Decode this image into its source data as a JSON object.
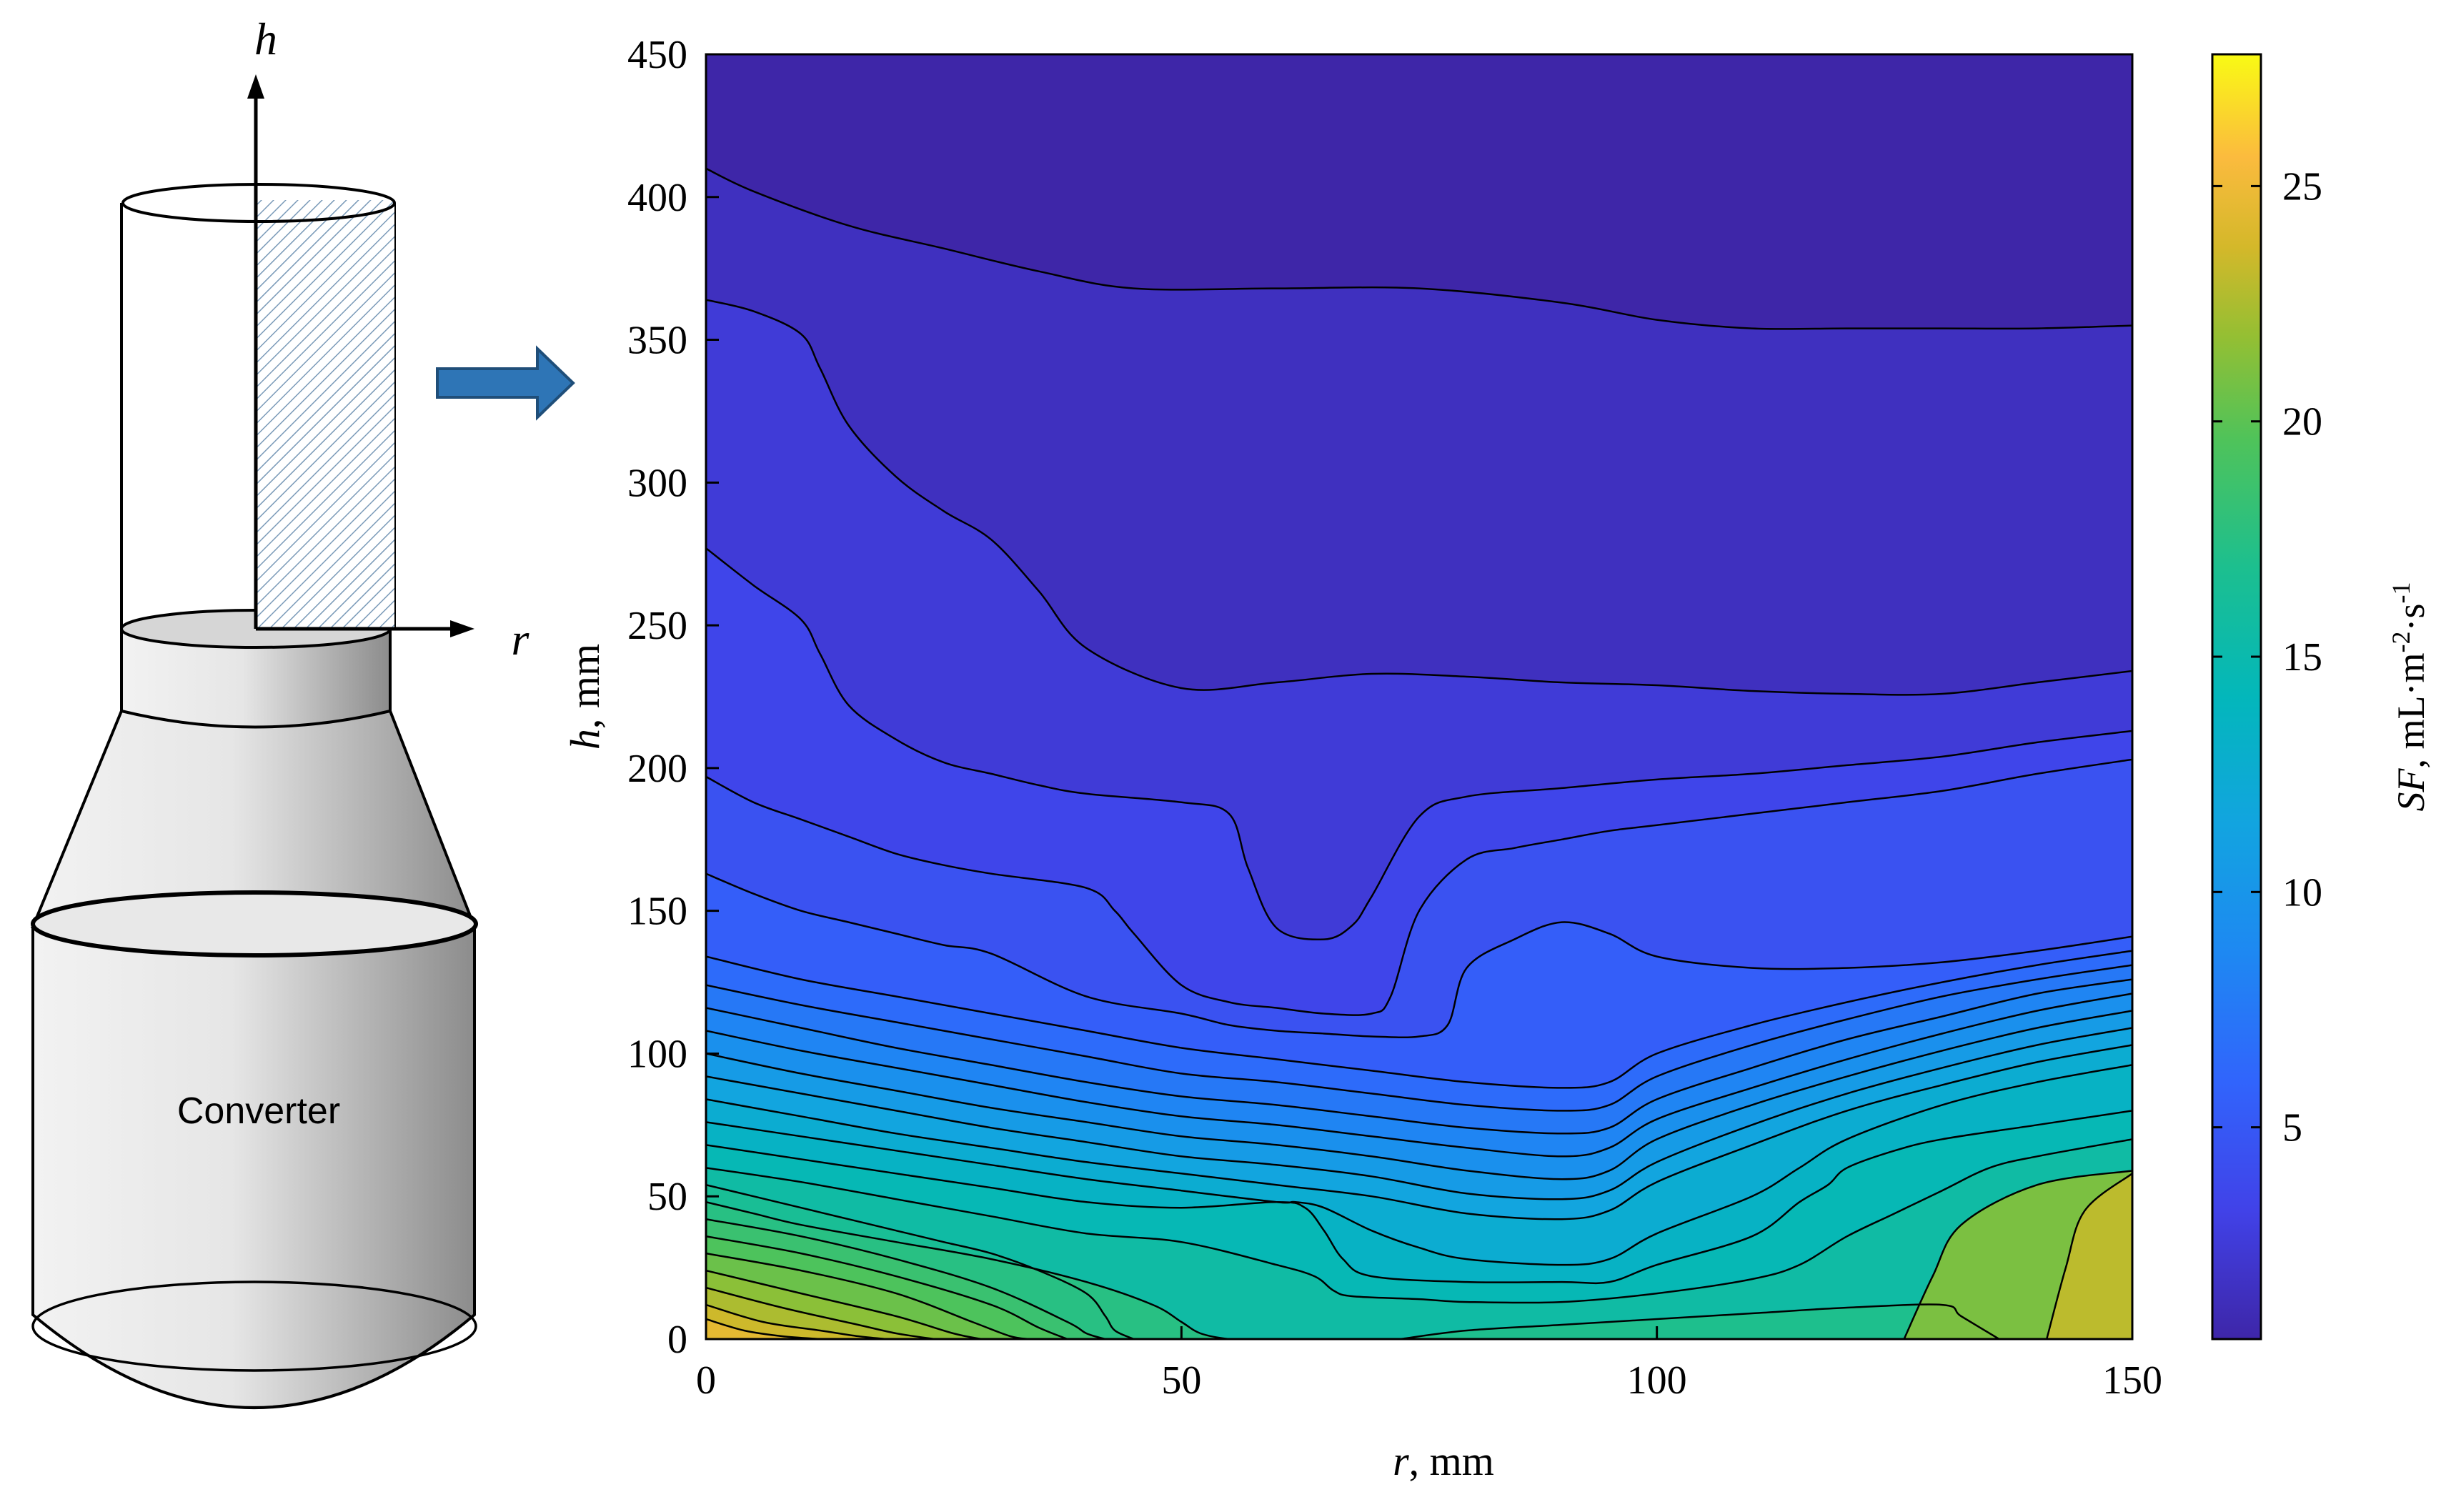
{
  "chart_data": {
    "type": "contour",
    "title": "",
    "xlabel": {
      "symbol": "r",
      "unit": ", mm"
    },
    "ylabel": {
      "symbol": "h",
      "unit": ", mm"
    },
    "xlim": [
      0,
      150
    ],
    "ylim": [
      0,
      450
    ],
    "xticks": [
      "0",
      "50",
      "100",
      "150"
    ],
    "yticks": [
      "0",
      "50",
      "100",
      "150",
      "200",
      "250",
      "300",
      "350",
      "400",
      "450"
    ],
    "colorbar": {
      "label": {
        "symbol": "SF",
        "unit": ", mL·m",
        "exp1": "-2",
        "mid": "·s",
        "exp2": "-1"
      },
      "range": [
        0.5,
        27.8
      ],
      "ticks": [
        "5",
        "10",
        "15",
        "20",
        "25"
      ],
      "colormap": "parula"
    },
    "contour_lines": [
      {
        "level": 1,
        "x": [
          0,
          5,
          15,
          25,
          35,
          45,
          60,
          75,
          90,
          100,
          110,
          120,
          130,
          140,
          150
        ],
        "y": [
          410,
          402,
          390,
          382,
          374,
          368,
          368,
          368,
          363,
          357,
          354,
          354,
          354,
          354,
          355
        ]
      },
      {
        "level": 2,
        "x": [
          0,
          5,
          10,
          12,
          15,
          20,
          25,
          30,
          35,
          40,
          50,
          60,
          70,
          80,
          90,
          100,
          110,
          120,
          130,
          140,
          150
        ],
        "y": [
          364,
          360,
          352,
          340,
          320,
          302,
          290,
          280,
          262,
          242,
          228,
          230,
          233,
          232,
          230,
          229,
          227,
          226,
          226,
          230,
          234
        ]
      },
      {
        "level": 3,
        "x": [
          0,
          5,
          10,
          12,
          15,
          20,
          25,
          30,
          35,
          40,
          50,
          55,
          57,
          60,
          65,
          68,
          70,
          75,
          80,
          90,
          100,
          110,
          120,
          130,
          140,
          150
        ],
        "y": [
          277,
          264,
          252,
          240,
          222,
          210,
          202,
          198,
          194,
          191,
          188,
          184,
          165,
          144,
          140,
          145,
          155,
          183,
          190,
          193,
          196,
          198,
          201,
          204,
          209,
          213
        ]
      },
      {
        "level": 4,
        "x": [
          0,
          5,
          10,
          15,
          20,
          25,
          30,
          40,
          43,
          45,
          50,
          55,
          60,
          65,
          70,
          72,
          75,
          80,
          85,
          90,
          95,
          100,
          110,
          120,
          130,
          140,
          150
        ],
        "y": [
          197,
          188,
          182,
          176,
          170,
          166,
          163,
          158,
          150,
          142,
          124,
          118,
          116,
          114,
          114,
          120,
          150,
          168,
          172,
          175,
          178,
          180,
          184,
          188,
          192,
          198,
          203
        ]
      },
      {
        "level": 5,
        "x": [
          0,
          5,
          10,
          15,
          20,
          25,
          30,
          40,
          50,
          55,
          60,
          65,
          70,
          75,
          78,
          80,
          85,
          90,
          95,
          100,
          110,
          120,
          130,
          140,
          150
        ],
        "y": [
          163,
          156,
          150,
          146,
          142,
          138,
          135,
          120,
          114,
          110,
          108,
          107,
          106,
          106,
          110,
          130,
          140,
          146,
          142,
          134,
          130,
          130,
          132,
          136,
          141
        ]
      },
      {
        "level": 6,
        "x": [
          0,
          10,
          20,
          30,
          40,
          50,
          60,
          70,
          80,
          90,
          95,
          100,
          110,
          120,
          130,
          140,
          150
        ],
        "y": [
          134,
          126,
          120,
          114,
          108,
          102,
          98,
          94,
          90,
          88,
          90,
          100,
          110,
          118,
          125,
          131,
          136
        ]
      },
      {
        "level": 7,
        "x": [
          0,
          10,
          20,
          30,
          40,
          50,
          60,
          70,
          80,
          90,
          95,
          100,
          110,
          120,
          130,
          140,
          150
        ],
        "y": [
          124,
          117,
          111,
          105,
          99,
          93,
          90,
          86,
          82,
          80,
          82,
          92,
          103,
          112,
          120,
          126,
          131
        ]
      },
      {
        "level": 8,
        "x": [
          0,
          10,
          20,
          30,
          40,
          50,
          60,
          70,
          80,
          90,
          95,
          100,
          110,
          120,
          130,
          140,
          150
        ],
        "y": [
          116,
          109,
          102,
          96,
          90,
          85,
          82,
          78,
          74,
          72,
          74,
          84,
          95,
          105,
          113,
          121,
          126
        ]
      },
      {
        "level": 9,
        "x": [
          0,
          10,
          20,
          30,
          40,
          50,
          60,
          70,
          80,
          90,
          95,
          100,
          110,
          120,
          130,
          140,
          150
        ],
        "y": [
          108,
          101,
          95,
          89,
          83,
          78,
          75,
          71,
          67,
          64,
          67,
          77,
          88,
          98,
          107,
          115,
          121
        ]
      },
      {
        "level": 10,
        "x": [
          0,
          10,
          20,
          30,
          40,
          50,
          60,
          70,
          80,
          90,
          95,
          100,
          110,
          120,
          130,
          140,
          150
        ],
        "y": [
          100,
          93,
          87,
          81,
          76,
          71,
          68,
          64,
          59,
          56,
          59,
          70,
          82,
          92,
          101,
          109,
          115
        ]
      },
      {
        "level": 11,
        "x": [
          0,
          10,
          20,
          30,
          40,
          50,
          60,
          70,
          80,
          90,
          95,
          100,
          110,
          120,
          130,
          140,
          150
        ],
        "y": [
          92,
          86,
          80,
          74,
          69,
          64,
          61,
          57,
          51,
          49,
          52,
          62,
          75,
          86,
          95,
          103,
          109
        ]
      },
      {
        "level": 12,
        "x": [
          0,
          10,
          20,
          30,
          40,
          50,
          60,
          70,
          80,
          90,
          95,
          100,
          110,
          120,
          130,
          140,
          150
        ],
        "y": [
          84,
          78,
          72,
          67,
          62,
          58,
          54,
          50,
          44,
          42,
          45,
          55,
          68,
          80,
          89,
          97,
          103
        ]
      },
      {
        "level": 13,
        "x": [
          0,
          10,
          20,
          30,
          40,
          50,
          60,
          62,
          65,
          70,
          75,
          80,
          90,
          95,
          100,
          110,
          115,
          120,
          130,
          140,
          150
        ],
        "y": [
          76,
          71,
          66,
          61,
          56,
          52,
          48,
          48,
          46,
          38,
          32,
          28,
          26,
          28,
          37,
          50,
          60,
          70,
          82,
          90,
          96
        ]
      },
      {
        "level": 14,
        "x": [
          0,
          10,
          20,
          30,
          40,
          50,
          60,
          63,
          65,
          67,
          70,
          80,
          90,
          95,
          100,
          110,
          115,
          118,
          120,
          125,
          130,
          140,
          150
        ],
        "y": [
          68,
          63,
          58,
          53,
          48,
          46,
          48,
          46,
          38,
          28,
          22,
          20,
          20,
          20,
          26,
          36,
          48,
          54,
          60,
          66,
          70,
          75,
          80
        ]
      },
      {
        "level": 15,
        "x": [
          0,
          10,
          20,
          30,
          40,
          50,
          60,
          64,
          66,
          68,
          75,
          80,
          90,
          100,
          110,
          115,
          120,
          125,
          130,
          135,
          140,
          150
        ],
        "y": [
          60,
          55,
          49,
          43,
          37,
          34,
          26,
          22,
          17,
          15,
          14,
          13,
          13,
          16,
          21,
          26,
          36,
          44,
          52,
          60,
          64,
          70
        ]
      },
      {
        "level": 16,
        "x": [
          0,
          5,
          10,
          15,
          20,
          25,
          30,
          35,
          40,
          42,
          43,
          45
        ],
        "y": [
          54,
          50,
          46,
          42,
          38,
          34,
          30,
          24,
          16,
          8,
          3,
          0
        ]
      },
      {
        "level": 17,
        "x": [
          0,
          5,
          10,
          20,
          30,
          40,
          47,
          50,
          52,
          55,
          57
        ],
        "y": [
          48,
          44,
          40,
          34,
          28,
          20,
          12,
          6,
          2,
          0,
          0
        ]
      },
      {
        "level": 18,
        "x": [
          0,
          10,
          20,
          30,
          38,
          40,
          42
        ],
        "y": [
          42,
          36,
          28,
          18,
          6,
          2,
          0
        ]
      },
      {
        "level": 19,
        "x": [
          0,
          10,
          20,
          30,
          35,
          38
        ],
        "y": [
          36,
          30,
          22,
          12,
          4,
          0
        ]
      },
      {
        "level": 20,
        "x": [
          0,
          10,
          20,
          28,
          32,
          34
        ],
        "y": [
          30,
          24,
          16,
          6,
          1,
          0
        ]
      },
      {
        "level": 21,
        "x": [
          0,
          10,
          20,
          26,
          29
        ],
        "y": [
          24,
          16,
          8,
          2,
          0
        ]
      },
      {
        "level": 22,
        "x": [
          0,
          8,
          16,
          20,
          24
        ],
        "y": [
          18,
          11,
          5,
          2,
          0
        ]
      },
      {
        "level": 23,
        "x": [
          0,
          6,
          12,
          16,
          19
        ],
        "y": [
          12,
          6,
          3,
          1,
          0
        ]
      },
      {
        "level": 24,
        "x": [
          0,
          4,
          8,
          12
        ],
        "y": [
          7,
          3,
          1,
          0
        ]
      },
      {
        "level": 16.5,
        "x": [
          73,
          80,
          90,
          100,
          110,
          120,
          130,
          132,
          136
        ],
        "y": [
          0,
          3,
          5,
          7,
          9,
          11,
          12,
          8,
          0
        ]
      },
      {
        "level": 20.5,
        "x": [
          126,
          129,
          132,
          140,
          150
        ],
        "y": [
          0,
          22,
          40,
          54,
          59
        ]
      },
      {
        "level": 22.5,
        "x": [
          141,
          143,
          145,
          150
        ],
        "y": [
          0,
          25,
          45,
          58
        ]
      }
    ]
  },
  "schematic": {
    "h_axis_label": "h",
    "r_axis_label": "r",
    "vessel_label": "Converter"
  },
  "colors": {
    "vessel_dark": "#8c8c8c",
    "vessel_light": "#f2f2f2",
    "hatch": "#7a9ab8",
    "arrow_fill": "#2e75b6",
    "arrow_stroke": "#1f4e79"
  }
}
